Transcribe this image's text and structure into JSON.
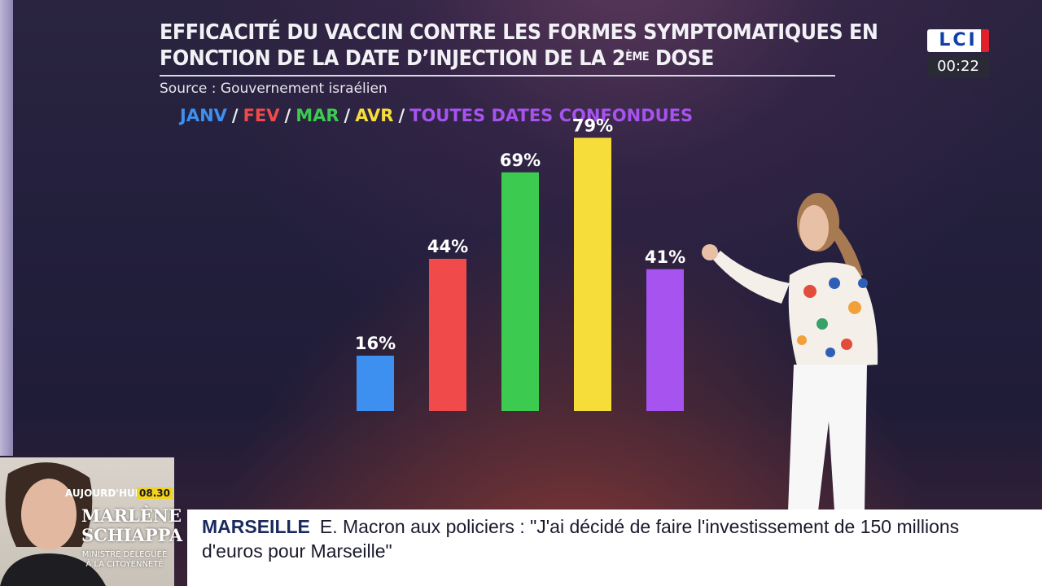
{
  "title": {
    "line1": "EFFICACITÉ DU VACCIN CONTRE LES FORMES SYMPTOMATIQUES EN",
    "line2_prefix": "FONCTION DE LA DATE D’INJECTION DE LA 2",
    "line2_sup": "ÈME",
    "line2_suffix": " DOSE"
  },
  "source": "Source : Gouvernement israélien",
  "legend": [
    {
      "label": "JANV",
      "color": "#3d8ff0"
    },
    {
      "label": "FEV",
      "color": "#f04a4a"
    },
    {
      "label": "MAR",
      "color": "#3ccb50"
    },
    {
      "label": "AVR",
      "color": "#f6dd3a"
    },
    {
      "label": "TOUTES DATES CONFONDUES",
      "color": "#a653ef"
    }
  ],
  "chart_data": {
    "type": "bar",
    "categories": [
      "JANV",
      "FEV",
      "MAR",
      "AVR",
      "TOUTES DATES CONFONDUES"
    ],
    "values": [
      16,
      44,
      69,
      79,
      41
    ],
    "labels": [
      "16%",
      "44%",
      "69%",
      "79%",
      "41%"
    ],
    "colors": [
      "#3d8ff0",
      "#f04a4a",
      "#3ccb50",
      "#f6dd3a",
      "#a653ef"
    ],
    "title": "EFFICACITÉ DU VACCIN CONTRE LES FORMES SYMPTOMATIQUES EN FONCTION DE LA DATE D’INJECTION DE LA 2ÈME DOSE",
    "xlabel": "",
    "ylabel": "",
    "ylim": [
      0,
      100
    ],
    "grid": false
  },
  "channel": {
    "logo": "LCI",
    "clock": "00:22"
  },
  "inset": {
    "tag": "AUJOURD'HUI",
    "time": "08.30",
    "name_line1": "MARLÈNE",
    "name_line2": "SCHIAPPA",
    "role_line1": "MINISTRE DÉLÉGUÉE",
    "role_line2": "À LA CITOYENNETÉ"
  },
  "ticker": {
    "tag": "MARSEILLE",
    "text": "E. Macron aux policiers : \"J'ai décidé de faire l'investissement de 150 millions d'euros pour Marseille\""
  }
}
